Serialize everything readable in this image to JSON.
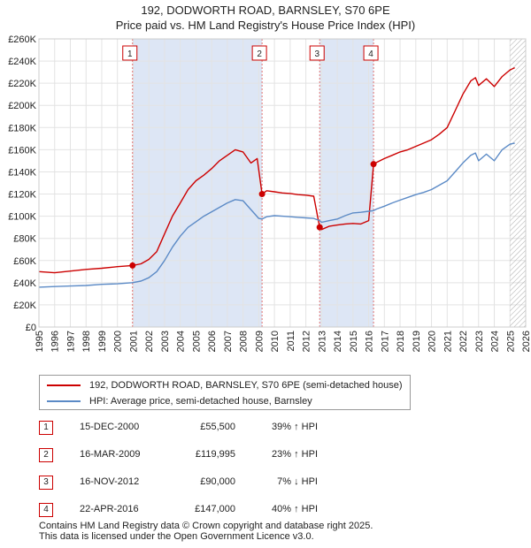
{
  "chart_data": {
    "type": "line",
    "title": "192, DODWORTH ROAD, BARNSLEY, S70 6PE",
    "subtitle": "Price paid vs. HM Land Registry's House Price Index (HPI)",
    "xlabel": "",
    "ylabel": "",
    "xlim": [
      1995,
      2026
    ],
    "ylim": [
      0,
      260000
    ],
    "x_ticks": [
      1995,
      1996,
      1997,
      1998,
      1999,
      2000,
      2001,
      2002,
      2003,
      2004,
      2005,
      2006,
      2007,
      2008,
      2009,
      2010,
      2011,
      2012,
      2013,
      2014,
      2015,
      2016,
      2017,
      2018,
      2019,
      2020,
      2021,
      2022,
      2023,
      2024,
      2025,
      2026
    ],
    "y_ticks": [
      0,
      20000,
      40000,
      60000,
      80000,
      100000,
      120000,
      140000,
      160000,
      180000,
      200000,
      220000,
      240000,
      260000
    ],
    "y_tick_labels": [
      "£0",
      "£20K",
      "£40K",
      "£60K",
      "£80K",
      "£100K",
      "£120K",
      "£140K",
      "£160K",
      "£180K",
      "£200K",
      "£220K",
      "£240K",
      "£260K"
    ],
    "grid": true,
    "shaded_spans": [
      [
        2000.96,
        2009.21
      ],
      [
        2012.88,
        2016.31
      ]
    ],
    "hatched_from": 2025.0,
    "series": [
      {
        "name": "192, DODWORTH ROAD, BARNSLEY, S70 6PE (semi-detached house)",
        "color": "#cc0000",
        "x": [
          1995.0,
          1996.0,
          1997.0,
          1998.0,
          1999.0,
          2000.0,
          2000.96,
          2001.5,
          2002.0,
          2002.5,
          2003.0,
          2003.5,
          2004.0,
          2004.5,
          2005.0,
          2005.5,
          2006.0,
          2006.5,
          2007.0,
          2007.5,
          2008.0,
          2008.5,
          2008.9,
          2009.21,
          2009.5,
          2010.0,
          2010.5,
          2011.0,
          2011.5,
          2012.0,
          2012.5,
          2012.88,
          2013.0,
          2013.5,
          2014.0,
          2014.5,
          2015.0,
          2015.5,
          2016.0,
          2016.31,
          2016.5,
          2017.0,
          2017.5,
          2018.0,
          2018.5,
          2019.0,
          2019.5,
          2020.0,
          2020.5,
          2021.0,
          2021.5,
          2022.0,
          2022.5,
          2022.8,
          2023.0,
          2023.5,
          2024.0,
          2024.5,
          2025.0,
          2025.3
        ],
        "values": [
          50000,
          49000,
          50500,
          52000,
          53000,
          54500,
          55500,
          57000,
          61000,
          68000,
          84000,
          100000,
          112000,
          124000,
          132000,
          137000,
          143000,
          150000,
          155000,
          160000,
          158000,
          148000,
          152000,
          119995,
          123000,
          122000,
          121000,
          120500,
          119500,
          119000,
          118000,
          90000,
          88000,
          91000,
          92000,
          93000,
          93500,
          93000,
          96000,
          147000,
          148500,
          152000,
          155000,
          158000,
          160000,
          163000,
          166000,
          169000,
          174000,
          180000,
          195000,
          210000,
          222000,
          225000,
          218000,
          224000,
          217000,
          226000,
          232000,
          234000
        ]
      },
      {
        "name": "HPI: Average price, semi-detached house, Barnsley",
        "color": "#5b8ac6",
        "x": [
          1995.0,
          1996.0,
          1997.0,
          1998.0,
          1999.0,
          2000.0,
          2000.96,
          2001.5,
          2002.0,
          2002.5,
          2003.0,
          2003.5,
          2004.0,
          2004.5,
          2005.0,
          2005.5,
          2006.0,
          2006.5,
          2007.0,
          2007.5,
          2008.0,
          2008.5,
          2009.0,
          2009.21,
          2009.5,
          2010.0,
          2010.5,
          2011.0,
          2011.5,
          2012.0,
          2012.5,
          2012.88,
          2013.0,
          2013.5,
          2014.0,
          2014.5,
          2015.0,
          2015.5,
          2016.0,
          2016.31,
          2016.5,
          2017.0,
          2017.5,
          2018.0,
          2018.5,
          2019.0,
          2019.5,
          2020.0,
          2020.5,
          2021.0,
          2021.5,
          2022.0,
          2022.5,
          2022.8,
          2023.0,
          2023.5,
          2024.0,
          2024.5,
          2025.0,
          2025.3
        ],
        "values": [
          36000,
          36500,
          37000,
          37500,
          38500,
          39000,
          40000,
          41500,
          44500,
          50000,
          60000,
          72000,
          82000,
          90000,
          95000,
          100000,
          104000,
          108000,
          112000,
          115000,
          114000,
          106000,
          98000,
          97500,
          99500,
          100500,
          100000,
          99500,
          99000,
          98500,
          98000,
          96000,
          94500,
          96000,
          97500,
          100500,
          103000,
          103500,
          104500,
          105000,
          106500,
          109000,
          112000,
          114500,
          117000,
          119500,
          121500,
          124000,
          128000,
          132000,
          140000,
          148000,
          155000,
          157000,
          150000,
          156000,
          150000,
          160000,
          165000,
          166000
        ]
      }
    ],
    "sales": [
      {
        "n": "1",
        "x": 2000.96,
        "value": 55500
      },
      {
        "n": "2",
        "x": 2009.21,
        "value": 119995
      },
      {
        "n": "3",
        "x": 2012.88,
        "value": 90000
      },
      {
        "n": "4",
        "x": 2016.31,
        "value": 147000
      }
    ]
  },
  "legend": {
    "property_label": "192, DODWORTH ROAD, BARNSLEY, S70 6PE (semi-detached house)",
    "hpi_label": "HPI: Average price, semi-detached house, Barnsley"
  },
  "sales_table": [
    {
      "n": "1",
      "date": "15-DEC-2000",
      "price": "£55,500",
      "hpi": "39% ↑ HPI"
    },
    {
      "n": "2",
      "date": "16-MAR-2009",
      "price": "£119,995",
      "hpi": "23% ↑ HPI"
    },
    {
      "n": "3",
      "date": "16-NOV-2012",
      "price": "£90,000",
      "hpi": "7% ↓ HPI"
    },
    {
      "n": "4",
      "date": "22-APR-2016",
      "price": "£147,000",
      "hpi": "40% ↑ HPI"
    }
  ],
  "footer": {
    "line1": "Contains HM Land Registry data © Crown copyright and database right 2025.",
    "line2": "This data is licensed under the Open Government Licence v3.0."
  },
  "colors": {
    "property": "#cc0000",
    "hpi": "#5b8ac6",
    "shade": "#dde6f5"
  }
}
